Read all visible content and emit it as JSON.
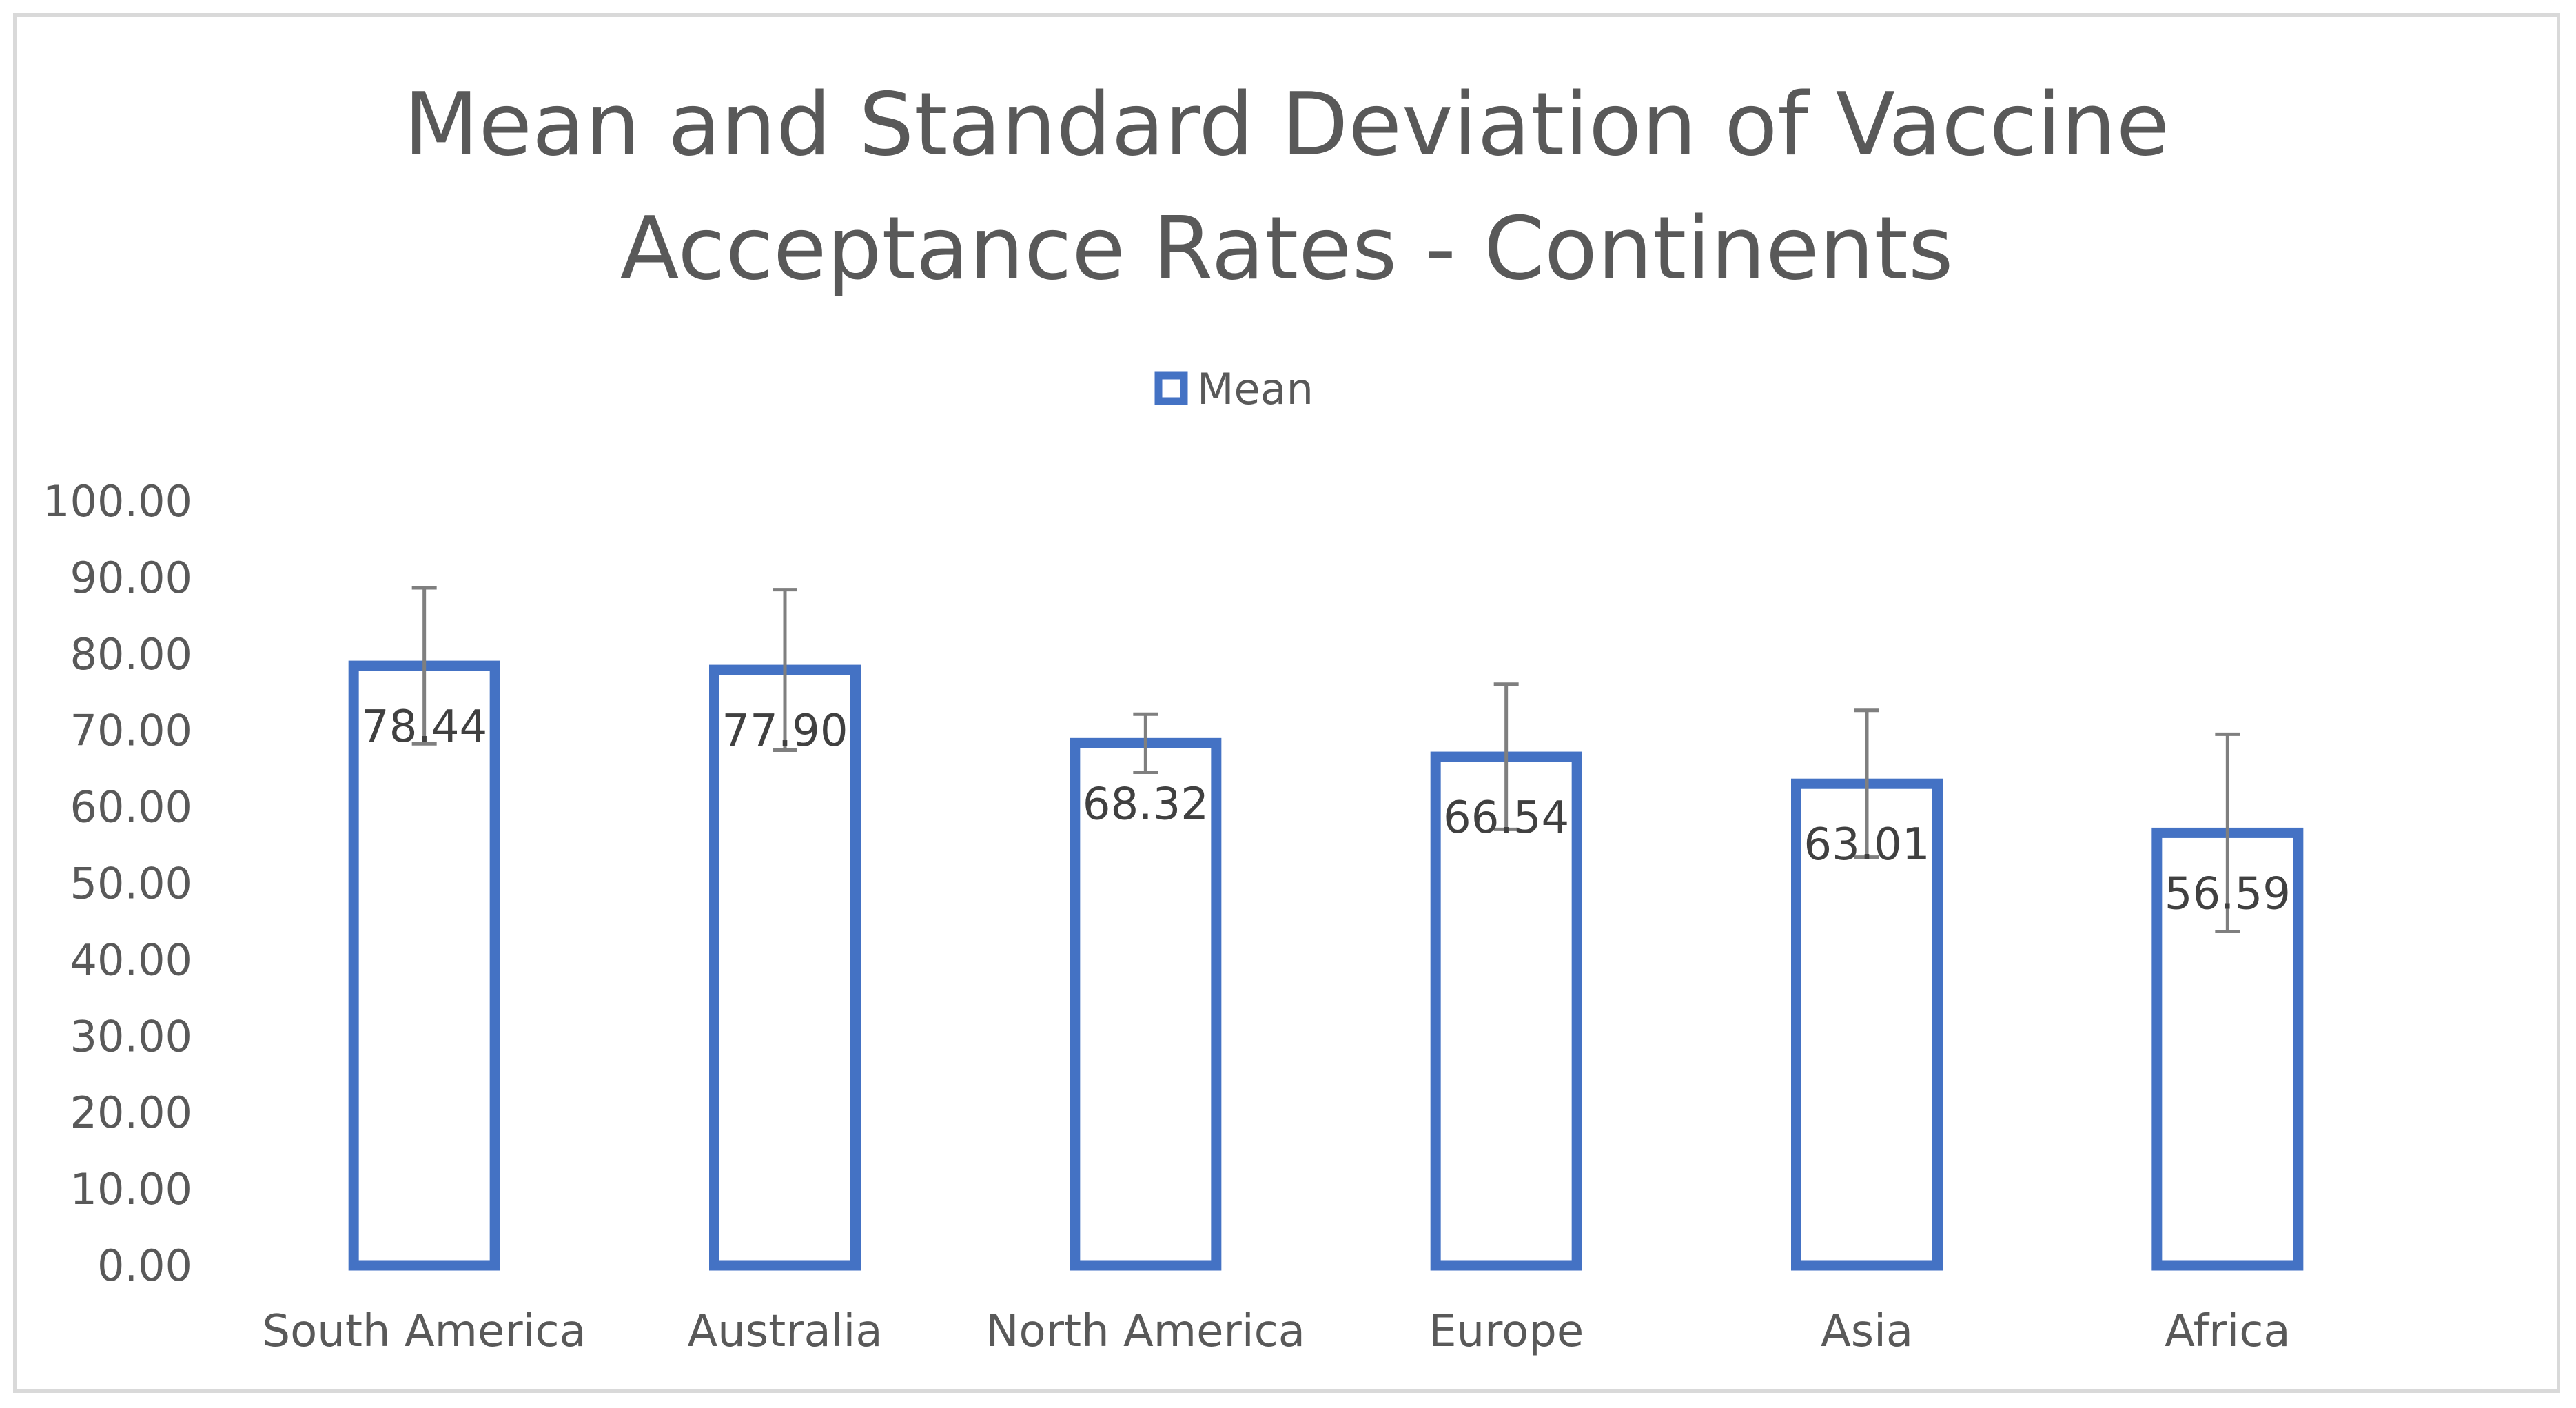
{
  "chart_data": {
    "type": "bar",
    "title_lines": [
      "Mean and Standard Deviation of Vaccine",
      "Acceptance Rates - Continents"
    ],
    "legend": [
      "Mean"
    ],
    "legend_position": "top",
    "categories": [
      "South America",
      "Australia",
      "North America",
      "Europe",
      "Asia",
      "Africa"
    ],
    "series": [
      {
        "name": "Mean",
        "values": [
          78.44,
          77.9,
          68.32,
          66.54,
          63.01,
          56.59
        ],
        "data_labels": [
          "78.44",
          "77.90",
          "68.32",
          "66.54",
          "63.01",
          "56.59"
        ],
        "std_dev": [
          10.2,
          10.5,
          3.8,
          9.5,
          9.6,
          12.9
        ]
      }
    ],
    "y_ticks": [
      "0.00",
      "10.00",
      "20.00",
      "30.00",
      "40.00",
      "50.00",
      "60.00",
      "70.00",
      "80.00",
      "90.00",
      "100.00"
    ],
    "ylim": [
      0,
      100
    ],
    "ystep": 10,
    "grid": false,
    "xlabel": "",
    "ylabel": "",
    "colors": {
      "bar_outline": "#4472c4",
      "error_bar": "#7f7f7f",
      "text": "#595959",
      "label": "#404040"
    }
  }
}
